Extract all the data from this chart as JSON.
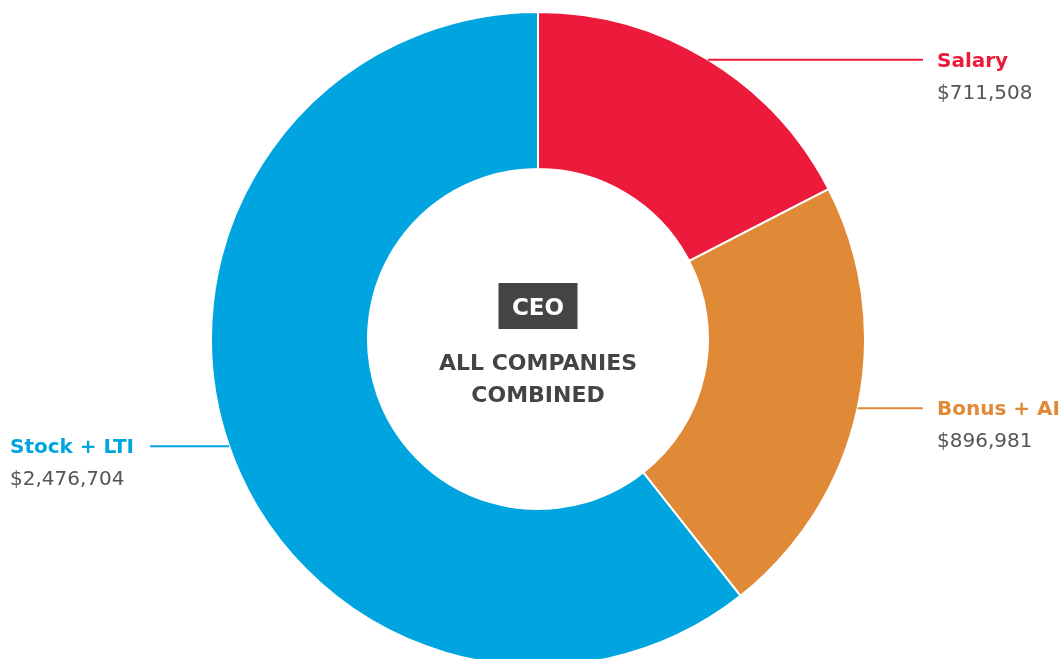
{
  "chart_data": {
    "type": "donut",
    "title": "CEO",
    "subtitle": "ALL COMPANIES COMBINED",
    "categories": [
      "Salary",
      "Bonus + AI",
      "Stock + LTI"
    ],
    "values": [
      711508,
      896981,
      2476704
    ],
    "value_labels": [
      "$711,508",
      "$896,981",
      "$2,476,704"
    ],
    "colors": [
      "#ed1b3b",
      "#e08a38",
      "#00a5df"
    ]
  }
}
